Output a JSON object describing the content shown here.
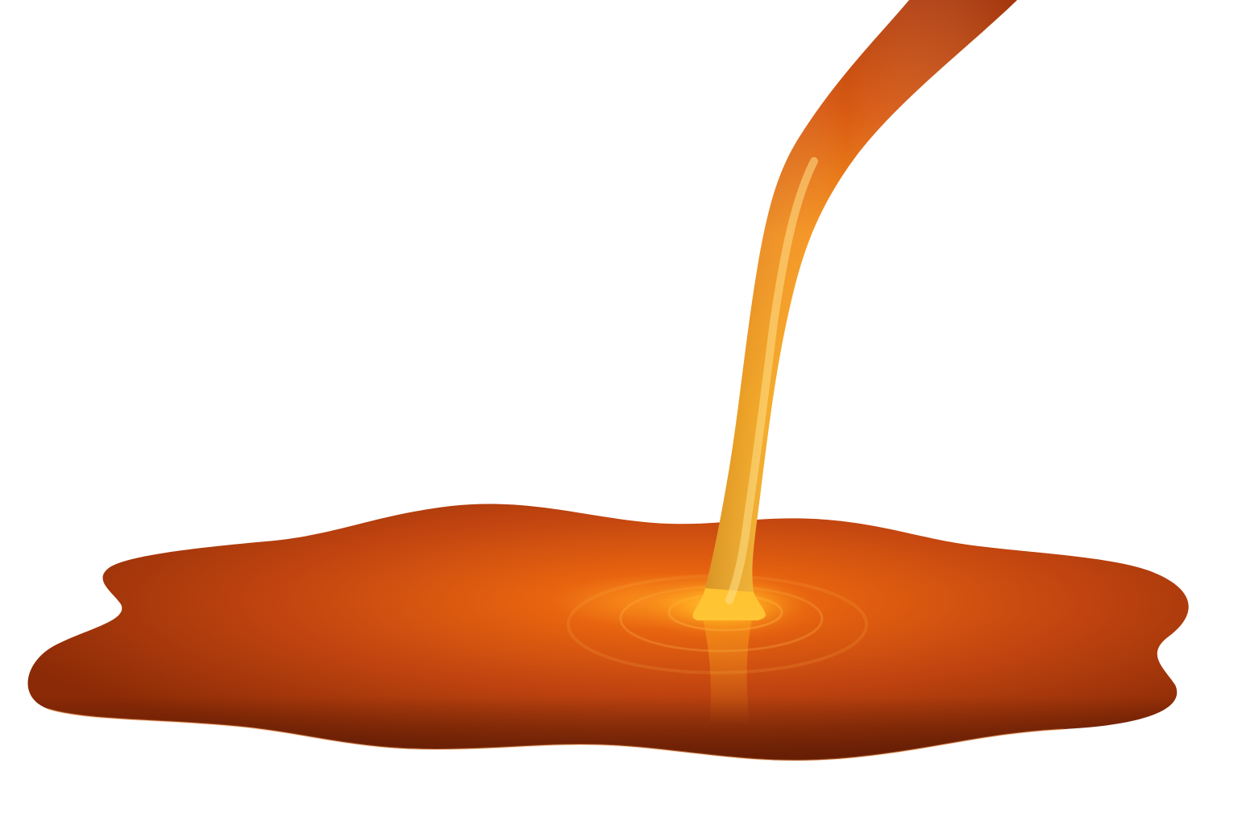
{
  "image": {
    "subject": "pouring-liquid-puddle",
    "colors": {
      "background": "#ffffff",
      "puddle_dark": "#8a2a06",
      "puddle_mid": "#c24510",
      "puddle_light": "#e8640f",
      "stream_top": "#c8470f",
      "stream_glow": "#ffb21e",
      "stream_core": "#ffd35a",
      "splash_glow": "#ffb020"
    }
  }
}
